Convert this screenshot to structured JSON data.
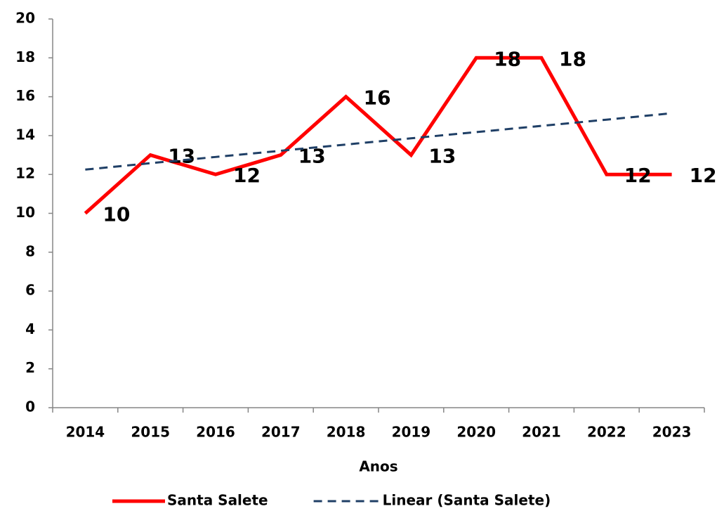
{
  "chart_data": {
    "type": "line",
    "x_label": "Anos",
    "categories": [
      "2014",
      "2015",
      "2016",
      "2017",
      "2018",
      "2019",
      "2020",
      "2021",
      "2022",
      "2023"
    ],
    "series": [
      {
        "name": "Santa Salete",
        "color": "#ff0000",
        "values": [
          10,
          13,
          12,
          13,
          16,
          13,
          18,
          18,
          12,
          12
        ],
        "data_labels": true
      },
      {
        "name": "Linear (Santa Salete)",
        "color": "#1f3f66",
        "dashed": true,
        "values": [
          12.25,
          12.58,
          12.9,
          13.22,
          13.54,
          13.86,
          14.18,
          14.5,
          14.82,
          15.15
        ]
      }
    ],
    "ylim": [
      0,
      20
    ],
    "yticks": [
      0,
      2,
      4,
      6,
      8,
      10,
      12,
      14,
      16,
      18,
      20
    ],
    "legend": "bottom"
  }
}
